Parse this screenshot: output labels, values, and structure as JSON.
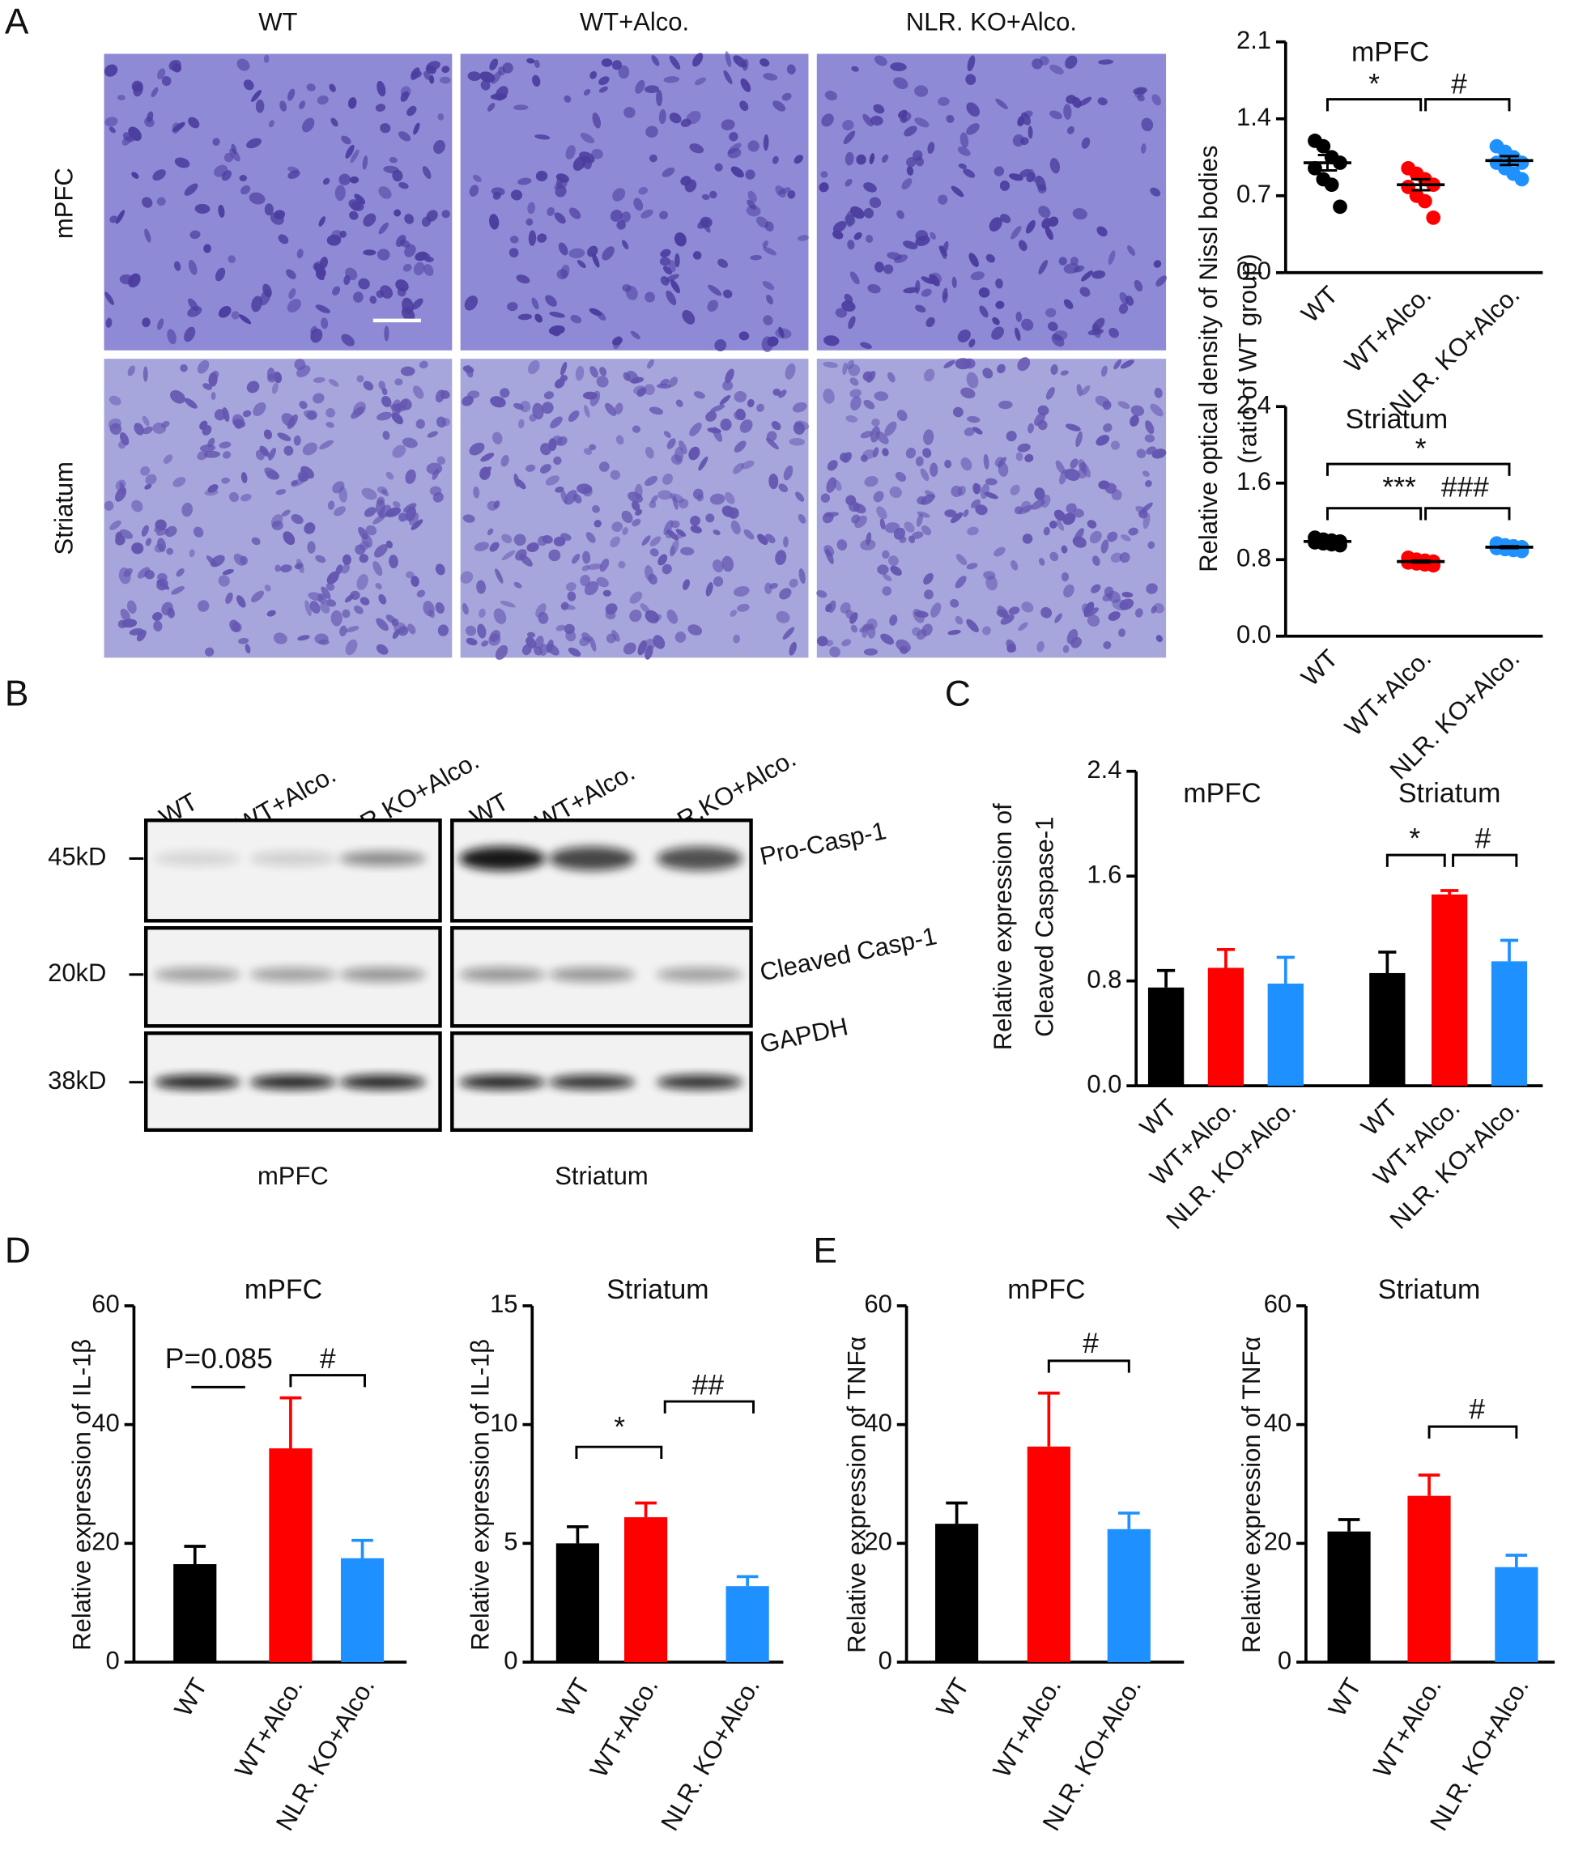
{
  "panels": [
    "A",
    "B",
    "C",
    "D",
    "E"
  ],
  "histology": {
    "columns": [
      "WT",
      "WT+Alco.",
      "NLR. KO+Alco."
    ],
    "rows": [
      "mPFC",
      "Striatum"
    ]
  },
  "western_blot": {
    "lanes": [
      "WT",
      "WT+Alco.",
      "NLR.KO+Alco."
    ],
    "markers": [
      "45kD",
      "20kD",
      "38kD"
    ],
    "bands": [
      "Pro-Casp-1",
      "Cleaved Casp-1",
      "GAPDH"
    ],
    "regions": [
      "mPFC",
      "Striatum"
    ]
  },
  "chart_data": [
    {
      "type": "dot",
      "title": "mPFC",
      "ylabel": [
        "Relative optical density of Nissl bodies",
        "(ratio of WT group)"
      ],
      "categories": [
        "WT",
        "WT+Alco.",
        "NLR. KO+Alco."
      ],
      "colors": [
        "#000000",
        "#ff0000",
        "#1e90ff"
      ],
      "points": [
        [
          1.2,
          1.15,
          1.05,
          1.0,
          0.95,
          0.85,
          0.8,
          0.6
        ],
        [
          0.95,
          0.9,
          0.85,
          0.8,
          0.78,
          0.7,
          0.65,
          0.5
        ],
        [
          1.15,
          1.1,
          1.05,
          1.0,
          1.0,
          0.95,
          0.9,
          0.85
        ]
      ],
      "means": [
        1.0,
        0.8,
        1.02
      ],
      "errors": [
        0.07,
        0.05,
        0.04
      ],
      "ylim": [
        0,
        2.1
      ],
      "yticks": [
        {
          "value": 0,
          "label": "0.0"
        },
        0.7,
        1.4,
        2.1
      ],
      "annotations": [
        "*",
        "#"
      ]
    },
    {
      "type": "dot",
      "title": "Striatum",
      "categories": [
        "WT",
        "WT+Alco.",
        "NLR. KO+Alco."
      ],
      "colors": [
        "#000000",
        "#ff0000",
        "#1e90ff"
      ],
      "points": [
        [
          1.03,
          1.01,
          1.0,
          0.99,
          0.98,
          0.97,
          0.96,
          0.95
        ],
        [
          0.82,
          0.8,
          0.79,
          0.78,
          0.77,
          0.76,
          0.75,
          0.74
        ],
        [
          0.97,
          0.95,
          0.94,
          0.93,
          0.92,
          0.91,
          0.9,
          0.89
        ]
      ],
      "means": [
        0.99,
        0.78,
        0.93
      ],
      "errors": [
        0.01,
        0.01,
        0.01
      ],
      "ylim": [
        0,
        2.4
      ],
      "yticks": [
        {
          "value": 0,
          "label": "0.0"
        },
        0.8,
        1.6,
        2.4
      ],
      "annotations": [
        "*",
        "***",
        "###"
      ]
    },
    {
      "type": "bar",
      "ylabel": [
        "Relative expression of",
        "Cleaved Caspase-1"
      ],
      "groups": [
        "mPFC",
        "Striatum"
      ],
      "categories": [
        "WT",
        "WT+Alco.",
        "NLR. KO+Alco.",
        "WT",
        "WT+Alco.",
        "NLR. KO+Alco."
      ],
      "colors": [
        "#000000",
        "#ff0000",
        "#1e90ff",
        "#000000",
        "#ff0000",
        "#1e90ff"
      ],
      "values": [
        0.75,
        0.9,
        0.78,
        0.86,
        1.46,
        0.95
      ],
      "errors": [
        0.13,
        0.14,
        0.2,
        0.16,
        0.03,
        0.16
      ],
      "ylim": [
        0,
        2.4
      ],
      "yticks": [
        {
          "value": 0,
          "label": "0.0"
        },
        0.8,
        1.6,
        2.4
      ],
      "annotations": [
        "*",
        "#"
      ]
    },
    {
      "type": "bar",
      "title": "mPFC",
      "ylabel": [
        "Relative expression of  IL-1β"
      ],
      "categories": [
        "WT",
        "WT+Alco.",
        "NLR. KO+Alco."
      ],
      "colors": [
        "#000000",
        "#ff0000",
        "#1e90ff"
      ],
      "values": [
        16.5,
        36,
        17.5
      ],
      "errors": [
        3,
        8.5,
        3
      ],
      "ylim": [
        0,
        60
      ],
      "yticks": [
        0,
        20,
        40,
        60
      ],
      "annotations": [
        "P=0.085",
        "#"
      ]
    },
    {
      "type": "bar",
      "title": "Striatum",
      "ylabel": [
        "Relative expression of  IL-1β"
      ],
      "categories": [
        "WT",
        "WT+Alco.",
        "NLR. KO+Alco."
      ],
      "colors": [
        "#000000",
        "#ff0000",
        "#1e90ff"
      ],
      "values": [
        5.0,
        6.1,
        3.2
      ],
      "errors": [
        0.7,
        0.6,
        0.4
      ],
      "ylim": [
        0,
        15
      ],
      "yticks": [
        0,
        5,
        10,
        15
      ],
      "annotations": [
        "*",
        "##"
      ]
    },
    {
      "type": "bar",
      "title": "mPFC",
      "ylabel": [
        "Relative expression of  TNFα"
      ],
      "categories": [
        "WT",
        "WT+Alco.",
        "NLR. KO+Alco."
      ],
      "colors": [
        "#000000",
        "#ff0000",
        "#1e90ff"
      ],
      "values": [
        23.3,
        36.3,
        22.4
      ],
      "errors": [
        3.5,
        9,
        2.7
      ],
      "ylim": [
        0,
        60
      ],
      "yticks": [
        0,
        20,
        40,
        60
      ],
      "annotations": [
        "#"
      ]
    },
    {
      "type": "bar",
      "title": "Striatum",
      "ylabel": [
        "Relative expression of  TNFα"
      ],
      "categories": [
        "WT",
        "WT+Alco.",
        "NLR. KO+Alco."
      ],
      "colors": [
        "#000000",
        "#ff0000",
        "#1e90ff"
      ],
      "values": [
        22,
        28,
        16
      ],
      "errors": [
        2,
        3.5,
        2
      ],
      "ylim": [
        0,
        60
      ],
      "yticks": [
        0,
        20,
        40,
        60
      ],
      "annotations": [
        "#"
      ]
    }
  ]
}
